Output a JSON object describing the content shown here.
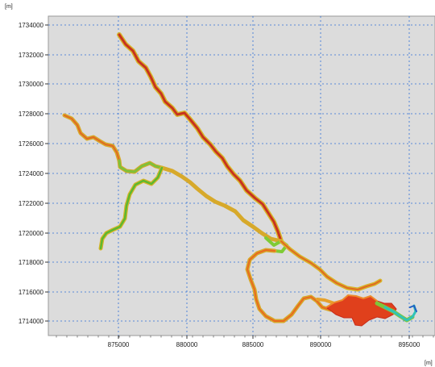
{
  "map": {
    "y_unit": "[m]",
    "x_unit": "[m]",
    "y_ticks": [
      "1734000",
      "1732000",
      "1730000",
      "1728000",
      "1726000",
      "1724000",
      "1722000",
      "1720000",
      "1718000",
      "1716000",
      "1714000"
    ],
    "x_ticks": [
      "875000",
      "880000",
      "885000",
      "890000",
      "895000"
    ],
    "colors": {
      "plot_background": "#dcdcdc",
      "grid": "#2f6fd6",
      "legend_frame": "#1f77b4",
      "river_red": "#c0281c",
      "river_orange": "#e8711f",
      "river_yellow": "#e7d31f",
      "river_green": "#5db82f",
      "river_cyan": "#32c8c0",
      "river_blue": "#1f6fc8"
    }
  }
}
